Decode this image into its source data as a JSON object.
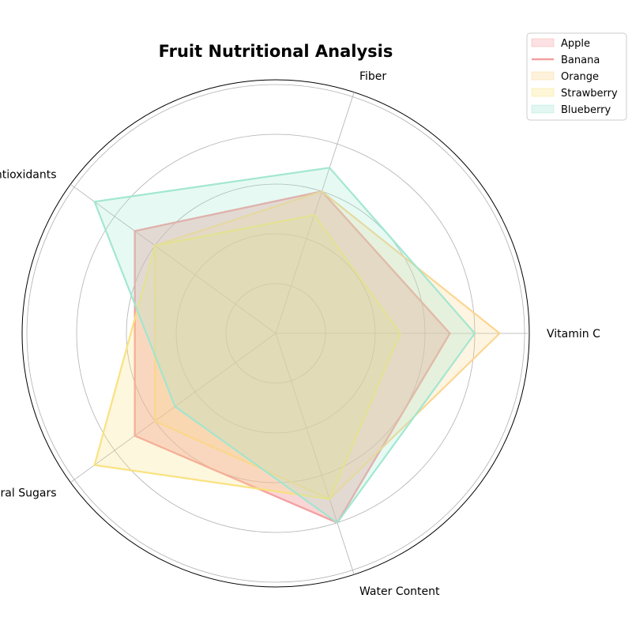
{
  "chart_data": {
    "type": "radar",
    "title": "Fruit Nutritional Analysis",
    "axes": [
      "Vitamin C",
      "Fiber",
      "Antioxidants",
      "Natural Sugars",
      "Water Content"
    ],
    "rlim": [
      0,
      5
    ],
    "rticks": [
      1,
      2,
      3,
      4,
      5
    ],
    "grid": true,
    "legend_position": "top-right",
    "series": [
      {
        "name": "Apple",
        "values": [
          3.5,
          3,
          3.5,
          3.5,
          4
        ],
        "color": "#f4a0a0",
        "legend_style": "patch"
      },
      {
        "name": "Banana",
        "values": [
          3.5,
          3,
          3.5,
          3.5,
          4
        ],
        "color": "#f4a0a0",
        "legend_style": "line"
      },
      {
        "name": "Orange",
        "values": [
          4.5,
          3,
          3,
          3,
          3.5
        ],
        "color": "#fbd48c",
        "legend_style": "patch"
      },
      {
        "name": "Strawberry",
        "values": [
          2.5,
          2.5,
          3,
          4.5,
          3.5
        ],
        "color": "#f9e07a",
        "legend_style": "patch"
      },
      {
        "name": "Blueberry",
        "values": [
          4,
          3.5,
          4.5,
          2.5,
          4
        ],
        "color": "#9ee6d0",
        "legend_style": "patch"
      }
    ]
  }
}
